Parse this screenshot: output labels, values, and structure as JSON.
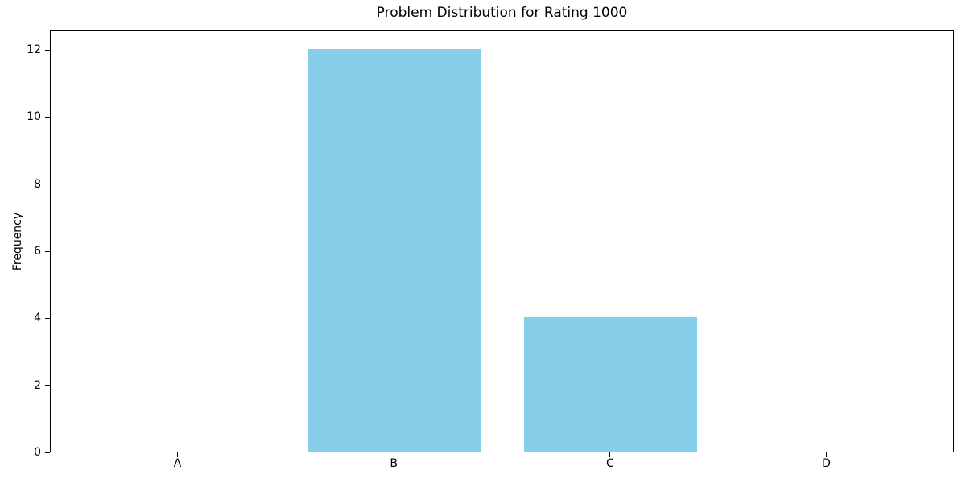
{
  "chart_data": {
    "type": "bar",
    "title": "Problem Distribution for Rating 1000",
    "xlabel": "",
    "ylabel": "Frequency",
    "categories": [
      "A",
      "B",
      "C",
      "D"
    ],
    "values": [
      0,
      12,
      4,
      0
    ],
    "yticks": [
      0,
      2,
      4,
      6,
      8,
      10,
      12
    ],
    "ylim": [
      0,
      12.6
    ],
    "xlim": [
      -0.59,
      3.59
    ],
    "bar_width": 0.8,
    "bar_color": "#87CEEB",
    "spine_color": "#000000",
    "background_color": "#ffffff",
    "grid": false,
    "legend": null
  }
}
